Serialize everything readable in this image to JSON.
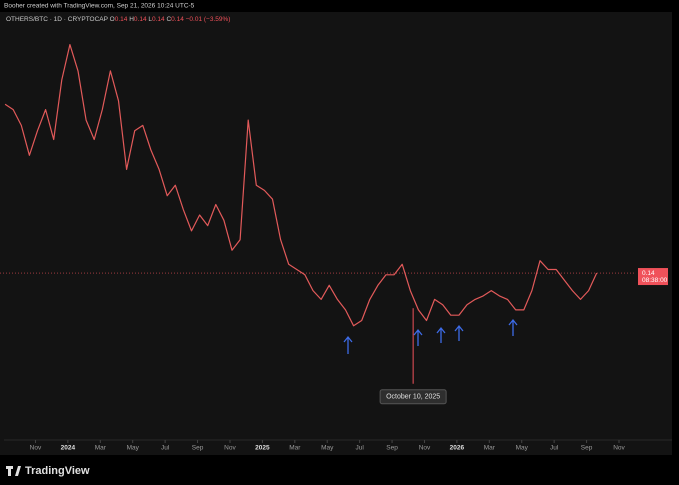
{
  "header": "Booher created with TradingView.com, Sep 21, 2026 10:24 UTC-5",
  "brand": "TradingView",
  "chart_data": {
    "type": "line",
    "symbol": "OTHERS/BTC · 1D · CRYPTOCAP",
    "ohlc": [
      {
        "label": "O",
        "value": "0.14"
      },
      {
        "label": "H",
        "value": "0.14"
      },
      {
        "label": "L",
        "value": "0.14"
      },
      {
        "label": "C",
        "value": "0.14"
      }
    ],
    "change": "−0.01 (−3.59%)",
    "price_label": {
      "value": 0.14,
      "label": "0.14"
    },
    "countdown": "08:38:00",
    "color": "#e25a5a",
    "xlim": [
      -2.1875,
      36.0625
    ],
    "ylim": [
      0.045,
      0.28
    ],
    "xticks": [
      {
        "value": 0,
        "label": "Nov"
      },
      {
        "value": 2,
        "label": "2024"
      },
      {
        "value": 4,
        "label": "Mar"
      },
      {
        "value": 6,
        "label": "May"
      },
      {
        "value": 8,
        "label": "Jul"
      },
      {
        "value": 10,
        "label": "Sep"
      },
      {
        "value": 12,
        "label": "Nov"
      },
      {
        "value": 14,
        "label": "2025"
      },
      {
        "value": 16,
        "label": "Mar"
      },
      {
        "value": 18,
        "label": "May"
      },
      {
        "value": 20,
        "label": "Jul"
      },
      {
        "value": 22,
        "label": "Sep"
      },
      {
        "value": 24,
        "label": "Nov"
      },
      {
        "value": 26,
        "label": "2026"
      },
      {
        "value": 28,
        "label": "Mar"
      },
      {
        "value": 30,
        "label": "May"
      },
      {
        "value": 32,
        "label": "Jul"
      },
      {
        "value": 34,
        "label": "Sep"
      },
      {
        "value": 36,
        "label": "Nov"
      }
    ],
    "x": [
      -1.875,
      -1.375,
      -0.875,
      -0.375,
      0.125,
      0.625,
      1.125,
      1.625,
      2.125,
      2.625,
      3.125,
      3.625,
      4.125,
      4.625,
      5.125,
      5.625,
      6.125,
      6.625,
      7.125,
      7.625,
      8.125,
      8.625,
      9.125,
      9.625,
      10.125,
      10.625,
      11.125,
      11.625,
      12.125,
      12.625,
      13.125,
      13.625,
      14.125,
      14.625,
      15.125,
      15.625,
      16.125,
      16.625,
      17.125,
      17.625,
      18.125,
      18.625,
      19.125,
      19.625,
      20.125,
      20.625,
      21.125,
      21.625,
      22.125,
      22.625,
      23.125,
      23.625,
      24.125,
      24.625,
      25.125,
      25.625,
      26.125,
      26.625,
      27.125,
      27.625,
      28.125,
      28.625,
      29.125,
      29.625,
      30.125,
      30.625,
      31.125,
      31.625,
      32.125,
      32.625,
      33.125,
      33.625,
      34.125,
      34.625
    ],
    "values": [
      0.236,
      0.233,
      0.224,
      0.207,
      0.221,
      0.233,
      0.216,
      0.25,
      0.27,
      0.255,
      0.227,
      0.216,
      0.233,
      0.255,
      0.238,
      0.199,
      0.221,
      0.224,
      0.21,
      0.199,
      0.184,
      0.19,
      0.176,
      0.164,
      0.173,
      0.167,
      0.179,
      0.17,
      0.153,
      0.159,
      0.227,
      0.19,
      0.187,
      0.182,
      0.159,
      0.145,
      0.142,
      0.139,
      0.13,
      0.125,
      0.133,
      0.125,
      0.119,
      0.11,
      0.113,
      0.125,
      0.133,
      0.139,
      0.139,
      0.145,
      0.13,
      0.119,
      0.113,
      0.125,
      0.122,
      0.116,
      0.116,
      0.122,
      0.125,
      0.127,
      0.13,
      0.127,
      0.125,
      0.119,
      0.119,
      0.13,
      0.147,
      0.142,
      0.142,
      0.136,
      0.13,
      0.125,
      0.13,
      0.14
    ],
    "annotation": {
      "x": 23.3,
      "value": 0.077,
      "label": "October 10, 2025"
    }
  }
}
